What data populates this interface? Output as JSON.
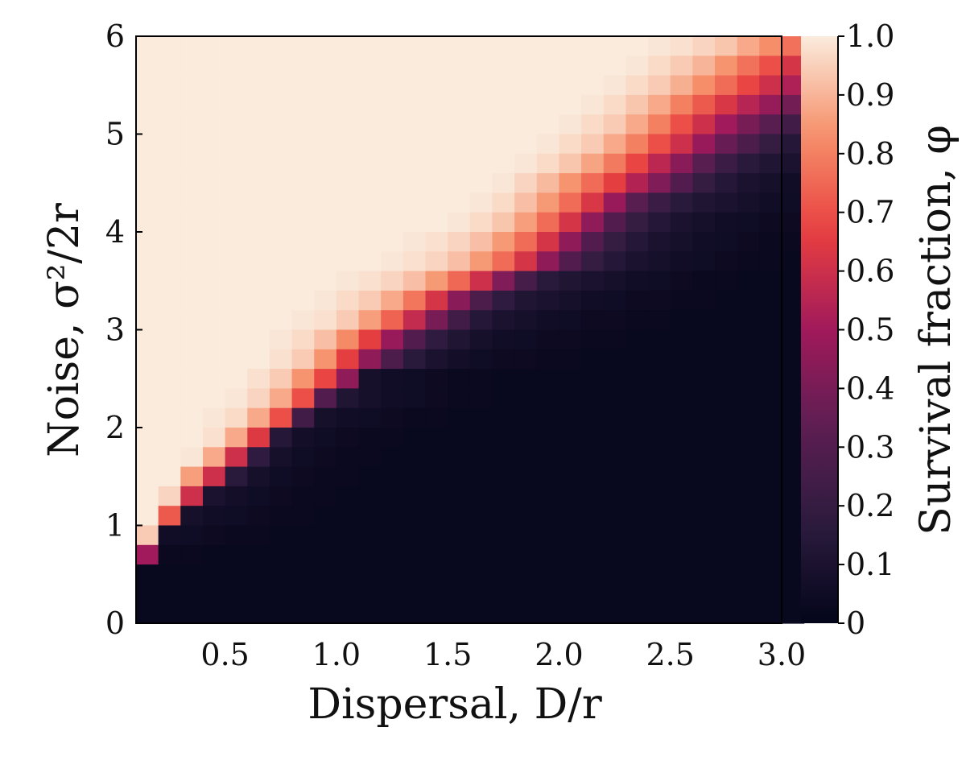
{
  "chart_data": {
    "type": "heatmap",
    "xlabel": "Dispersal, D/r",
    "ylabel": "Noise, σ²/2r",
    "colorbar_label": "Survival fraction, φ",
    "x_range": [
      0.1,
      3.0
    ],
    "y_range": [
      0,
      6
    ],
    "x_ticks": [
      "0.5",
      "1.0",
      "1.5",
      "2.0",
      "2.5",
      "3.0"
    ],
    "x_tick_values": [
      0.5,
      1.0,
      1.5,
      2.0,
      2.5,
      3.0
    ],
    "y_ticks": [
      "0",
      "1",
      "2",
      "3",
      "4",
      "5",
      "6"
    ],
    "y_tick_values": [
      0,
      1,
      2,
      3,
      4,
      5,
      6
    ],
    "colorbar_ticks": [
      "0",
      "0.1",
      "0.2",
      "0.3",
      "0.4",
      "0.5",
      "0.6",
      "0.7",
      "0.8",
      "0.9",
      "1.0"
    ],
    "colorbar_tick_values": [
      0,
      0.1,
      0.2,
      0.3,
      0.4,
      0.5,
      0.6,
      0.7,
      0.8,
      0.9,
      1.0
    ],
    "vrange": [
      0,
      1
    ],
    "colormap": [
      "#03051a",
      "#2b1b3d",
      "#5c1e52",
      "#a11a5b",
      "#e83f3f",
      "#f6906a",
      "#faebdd"
    ],
    "grid": false,
    "n_cols": 30,
    "n_rows": 30,
    "x_step": 0.1,
    "y_step": 0.2,
    "rows_top_to_bottom": [
      [
        1.0,
        1.0,
        1.0,
        1.0,
        1.0,
        1.0,
        1.0,
        1.0,
        1.0,
        1.0,
        1.0,
        1.0,
        1.0,
        1.0,
        1.0,
        1.0,
        1.0,
        1.0,
        1.0,
        1.0,
        1.0,
        1.0,
        1.0,
        0.99,
        0.98,
        0.96,
        0.93,
        0.88,
        0.83,
        0.77
      ],
      [
        1.0,
        1.0,
        1.0,
        1.0,
        1.0,
        1.0,
        1.0,
        1.0,
        1.0,
        1.0,
        1.0,
        1.0,
        1.0,
        1.0,
        1.0,
        1.0,
        1.0,
        1.0,
        1.0,
        1.0,
        1.0,
        1.0,
        0.99,
        0.97,
        0.94,
        0.9,
        0.84,
        0.77,
        0.7,
        0.62
      ],
      [
        1.0,
        1.0,
        1.0,
        1.0,
        1.0,
        1.0,
        1.0,
        1.0,
        1.0,
        1.0,
        1.0,
        1.0,
        1.0,
        1.0,
        1.0,
        1.0,
        1.0,
        1.0,
        1.0,
        1.0,
        1.0,
        0.99,
        0.97,
        0.94,
        0.89,
        0.83,
        0.76,
        0.68,
        0.6,
        0.53
      ],
      [
        1.0,
        1.0,
        1.0,
        1.0,
        1.0,
        1.0,
        1.0,
        1.0,
        1.0,
        1.0,
        1.0,
        1.0,
        1.0,
        1.0,
        1.0,
        1.0,
        1.0,
        1.0,
        1.0,
        1.0,
        0.99,
        0.97,
        0.93,
        0.88,
        0.8,
        0.72,
        0.63,
        0.55,
        0.47,
        0.39
      ],
      [
        1.0,
        1.0,
        1.0,
        1.0,
        1.0,
        1.0,
        1.0,
        1.0,
        1.0,
        1.0,
        1.0,
        1.0,
        1.0,
        1.0,
        1.0,
        1.0,
        1.0,
        1.0,
        1.0,
        0.99,
        0.97,
        0.94,
        0.88,
        0.8,
        0.7,
        0.6,
        0.5,
        0.4,
        0.32,
        0.24
      ],
      [
        1.0,
        1.0,
        1.0,
        1.0,
        1.0,
        1.0,
        1.0,
        1.0,
        1.0,
        1.0,
        1.0,
        1.0,
        1.0,
        1.0,
        1.0,
        1.0,
        1.0,
        1.0,
        0.99,
        0.97,
        0.94,
        0.88,
        0.8,
        0.7,
        0.6,
        0.48,
        0.36,
        0.28,
        0.2,
        0.14
      ],
      [
        1.0,
        1.0,
        1.0,
        1.0,
        1.0,
        1.0,
        1.0,
        1.0,
        1.0,
        1.0,
        1.0,
        1.0,
        1.0,
        1.0,
        1.0,
        1.0,
        1.0,
        0.99,
        0.97,
        0.93,
        0.87,
        0.79,
        0.68,
        0.56,
        0.44,
        0.32,
        0.22,
        0.16,
        0.12,
        0.1
      ],
      [
        1.0,
        1.0,
        1.0,
        1.0,
        1.0,
        1.0,
        1.0,
        1.0,
        1.0,
        1.0,
        1.0,
        1.0,
        1.0,
        1.0,
        1.0,
        1.0,
        0.99,
        0.96,
        0.91,
        0.84,
        0.76,
        0.66,
        0.54,
        0.42,
        0.3,
        0.2,
        0.14,
        0.1,
        0.08,
        0.06
      ],
      [
        1.0,
        1.0,
        1.0,
        1.0,
        1.0,
        1.0,
        1.0,
        1.0,
        1.0,
        1.0,
        1.0,
        1.0,
        1.0,
        1.0,
        1.0,
        0.99,
        0.97,
        0.92,
        0.85,
        0.76,
        0.63,
        0.48,
        0.32,
        0.22,
        0.16,
        0.12,
        0.1,
        0.08,
        0.06,
        0.05
      ],
      [
        1.0,
        1.0,
        1.0,
        1.0,
        1.0,
        1.0,
        1.0,
        1.0,
        1.0,
        1.0,
        1.0,
        1.0,
        1.0,
        1.0,
        0.99,
        0.97,
        0.93,
        0.86,
        0.76,
        0.62,
        0.46,
        0.3,
        0.2,
        0.14,
        0.1,
        0.08,
        0.06,
        0.05,
        0.04,
        0.04
      ],
      [
        1.0,
        1.0,
        1.0,
        1.0,
        1.0,
        1.0,
        1.0,
        1.0,
        1.0,
        1.0,
        1.0,
        1.0,
        0.99,
        0.98,
        0.96,
        0.92,
        0.85,
        0.76,
        0.62,
        0.46,
        0.3,
        0.2,
        0.14,
        0.1,
        0.08,
        0.06,
        0.05,
        0.04,
        0.03,
        0.03
      ],
      [
        1.0,
        1.0,
        1.0,
        1.0,
        1.0,
        1.0,
        1.0,
        1.0,
        1.0,
        1.0,
        1.0,
        0.99,
        0.98,
        0.96,
        0.92,
        0.85,
        0.76,
        0.62,
        0.46,
        0.3,
        0.2,
        0.14,
        0.1,
        0.08,
        0.06,
        0.05,
        0.04,
        0.03,
        0.03,
        0.02
      ],
      [
        1.0,
        1.0,
        1.0,
        1.0,
        1.0,
        1.0,
        1.0,
        1.0,
        1.0,
        0.99,
        0.98,
        0.96,
        0.92,
        0.85,
        0.75,
        0.6,
        0.42,
        0.26,
        0.16,
        0.12,
        0.1,
        0.08,
        0.06,
        0.05,
        0.04,
        0.03,
        0.03,
        0.02,
        0.02,
        0.02
      ],
      [
        1.0,
        1.0,
        1.0,
        1.0,
        1.0,
        1.0,
        1.0,
        1.0,
        0.99,
        0.97,
        0.94,
        0.88,
        0.78,
        0.62,
        0.44,
        0.28,
        0.18,
        0.12,
        0.1,
        0.08,
        0.06,
        0.05,
        0.04,
        0.04,
        0.03,
        0.03,
        0.02,
        0.02,
        0.02,
        0.02
      ],
      [
        1.0,
        1.0,
        1.0,
        1.0,
        1.0,
        1.0,
        1.0,
        0.99,
        0.98,
        0.94,
        0.86,
        0.74,
        0.58,
        0.4,
        0.24,
        0.14,
        0.1,
        0.08,
        0.06,
        0.05,
        0.04,
        0.04,
        0.03,
        0.03,
        0.02,
        0.02,
        0.02,
        0.02,
        0.02,
        0.02
      ],
      [
        1.0,
        1.0,
        1.0,
        1.0,
        1.0,
        1.0,
        0.99,
        0.97,
        0.92,
        0.82,
        0.66,
        0.48,
        0.3,
        0.18,
        0.12,
        0.08,
        0.06,
        0.05,
        0.04,
        0.04,
        0.03,
        0.03,
        0.02,
        0.02,
        0.02,
        0.02,
        0.02,
        0.02,
        0.02,
        0.02
      ],
      [
        1.0,
        1.0,
        1.0,
        1.0,
        1.0,
        1.0,
        0.98,
        0.94,
        0.84,
        0.66,
        0.46,
        0.28,
        0.16,
        0.1,
        0.07,
        0.05,
        0.04,
        0.04,
        0.03,
        0.03,
        0.02,
        0.02,
        0.02,
        0.02,
        0.02,
        0.02,
        0.02,
        0.02,
        0.02,
        0.02
      ],
      [
        1.0,
        1.0,
        1.0,
        1.0,
        1.0,
        0.98,
        0.94,
        0.84,
        0.68,
        0.46,
        0.08,
        0.06,
        0.05,
        0.04,
        0.03,
        0.03,
        0.02,
        0.02,
        0.02,
        0.02,
        0.02,
        0.02,
        0.02,
        0.02,
        0.02,
        0.02,
        0.02,
        0.02,
        0.02,
        0.02
      ],
      [
        1.0,
        1.0,
        1.0,
        1.0,
        0.99,
        0.96,
        0.88,
        0.7,
        0.3,
        0.12,
        0.08,
        0.06,
        0.05,
        0.04,
        0.03,
        0.03,
        0.02,
        0.02,
        0.02,
        0.02,
        0.02,
        0.02,
        0.02,
        0.02,
        0.02,
        0.02,
        0.02,
        0.02,
        0.02,
        0.02
      ],
      [
        1.0,
        1.0,
        1.0,
        0.99,
        0.97,
        0.88,
        0.7,
        0.24,
        0.08,
        0.06,
        0.05,
        0.04,
        0.03,
        0.03,
        0.02,
        0.02,
        0.02,
        0.02,
        0.02,
        0.02,
        0.02,
        0.02,
        0.02,
        0.02,
        0.02,
        0.02,
        0.02,
        0.02,
        0.02,
        0.02
      ],
      [
        1.0,
        1.0,
        1.0,
        0.98,
        0.88,
        0.64,
        0.14,
        0.07,
        0.05,
        0.04,
        0.03,
        0.03,
        0.02,
        0.02,
        0.02,
        0.02,
        0.02,
        0.02,
        0.02,
        0.02,
        0.02,
        0.02,
        0.02,
        0.02,
        0.02,
        0.02,
        0.02,
        0.02,
        0.02,
        0.02
      ],
      [
        1.0,
        1.0,
        0.99,
        0.88,
        0.6,
        0.18,
        0.08,
        0.05,
        0.04,
        0.03,
        0.03,
        0.02,
        0.02,
        0.02,
        0.02,
        0.02,
        0.02,
        0.02,
        0.02,
        0.02,
        0.02,
        0.02,
        0.02,
        0.02,
        0.02,
        0.02,
        0.02,
        0.02,
        0.02,
        0.02
      ],
      [
        1.0,
        1.0,
        0.86,
        0.6,
        0.16,
        0.08,
        0.05,
        0.04,
        0.03,
        0.03,
        0.02,
        0.02,
        0.02,
        0.02,
        0.02,
        0.02,
        0.02,
        0.02,
        0.02,
        0.02,
        0.02,
        0.02,
        0.02,
        0.02,
        0.02,
        0.02,
        0.02,
        0.02,
        0.02,
        0.02
      ],
      [
        1.0,
        0.96,
        0.6,
        0.1,
        0.07,
        0.05,
        0.04,
        0.03,
        0.03,
        0.02,
        0.02,
        0.02,
        0.02,
        0.02,
        0.02,
        0.02,
        0.02,
        0.02,
        0.02,
        0.02,
        0.02,
        0.02,
        0.02,
        0.02,
        0.02,
        0.02,
        0.02,
        0.02,
        0.02,
        0.02
      ],
      [
        1.0,
        0.72,
        0.08,
        0.06,
        0.05,
        0.04,
        0.03,
        0.03,
        0.02,
        0.02,
        0.02,
        0.02,
        0.02,
        0.02,
        0.02,
        0.02,
        0.02,
        0.02,
        0.02,
        0.02,
        0.02,
        0.02,
        0.02,
        0.02,
        0.02,
        0.02,
        0.02,
        0.02,
        0.02,
        0.02
      ],
      [
        0.94,
        0.06,
        0.05,
        0.04,
        0.03,
        0.03,
        0.02,
        0.02,
        0.02,
        0.02,
        0.02,
        0.02,
        0.02,
        0.02,
        0.02,
        0.02,
        0.02,
        0.02,
        0.02,
        0.02,
        0.02,
        0.02,
        0.02,
        0.02,
        0.02,
        0.02,
        0.02,
        0.02,
        0.02,
        0.02
      ],
      [
        0.5,
        0.03,
        0.03,
        0.02,
        0.02,
        0.02,
        0.02,
        0.02,
        0.02,
        0.02,
        0.02,
        0.02,
        0.02,
        0.02,
        0.02,
        0.02,
        0.02,
        0.02,
        0.02,
        0.02,
        0.02,
        0.02,
        0.02,
        0.02,
        0.02,
        0.02,
        0.02,
        0.02,
        0.02,
        0.02
      ],
      [
        0.02,
        0.02,
        0.02,
        0.02,
        0.02,
        0.02,
        0.02,
        0.02,
        0.02,
        0.02,
        0.02,
        0.02,
        0.02,
        0.02,
        0.02,
        0.02,
        0.02,
        0.02,
        0.02,
        0.02,
        0.02,
        0.02,
        0.02,
        0.02,
        0.02,
        0.02,
        0.02,
        0.02,
        0.02,
        0.02
      ],
      [
        0.02,
        0.02,
        0.02,
        0.02,
        0.02,
        0.02,
        0.02,
        0.02,
        0.02,
        0.02,
        0.02,
        0.02,
        0.02,
        0.02,
        0.02,
        0.02,
        0.02,
        0.02,
        0.02,
        0.02,
        0.02,
        0.02,
        0.02,
        0.02,
        0.02,
        0.02,
        0.02,
        0.02,
        0.02,
        0.02
      ],
      [
        0.02,
        0.02,
        0.02,
        0.02,
        0.02,
        0.02,
        0.02,
        0.02,
        0.02,
        0.02,
        0.02,
        0.02,
        0.02,
        0.02,
        0.02,
        0.02,
        0.02,
        0.02,
        0.02,
        0.02,
        0.02,
        0.02,
        0.02,
        0.02,
        0.02,
        0.02,
        0.02,
        0.02,
        0.02,
        0.02
      ]
    ]
  }
}
